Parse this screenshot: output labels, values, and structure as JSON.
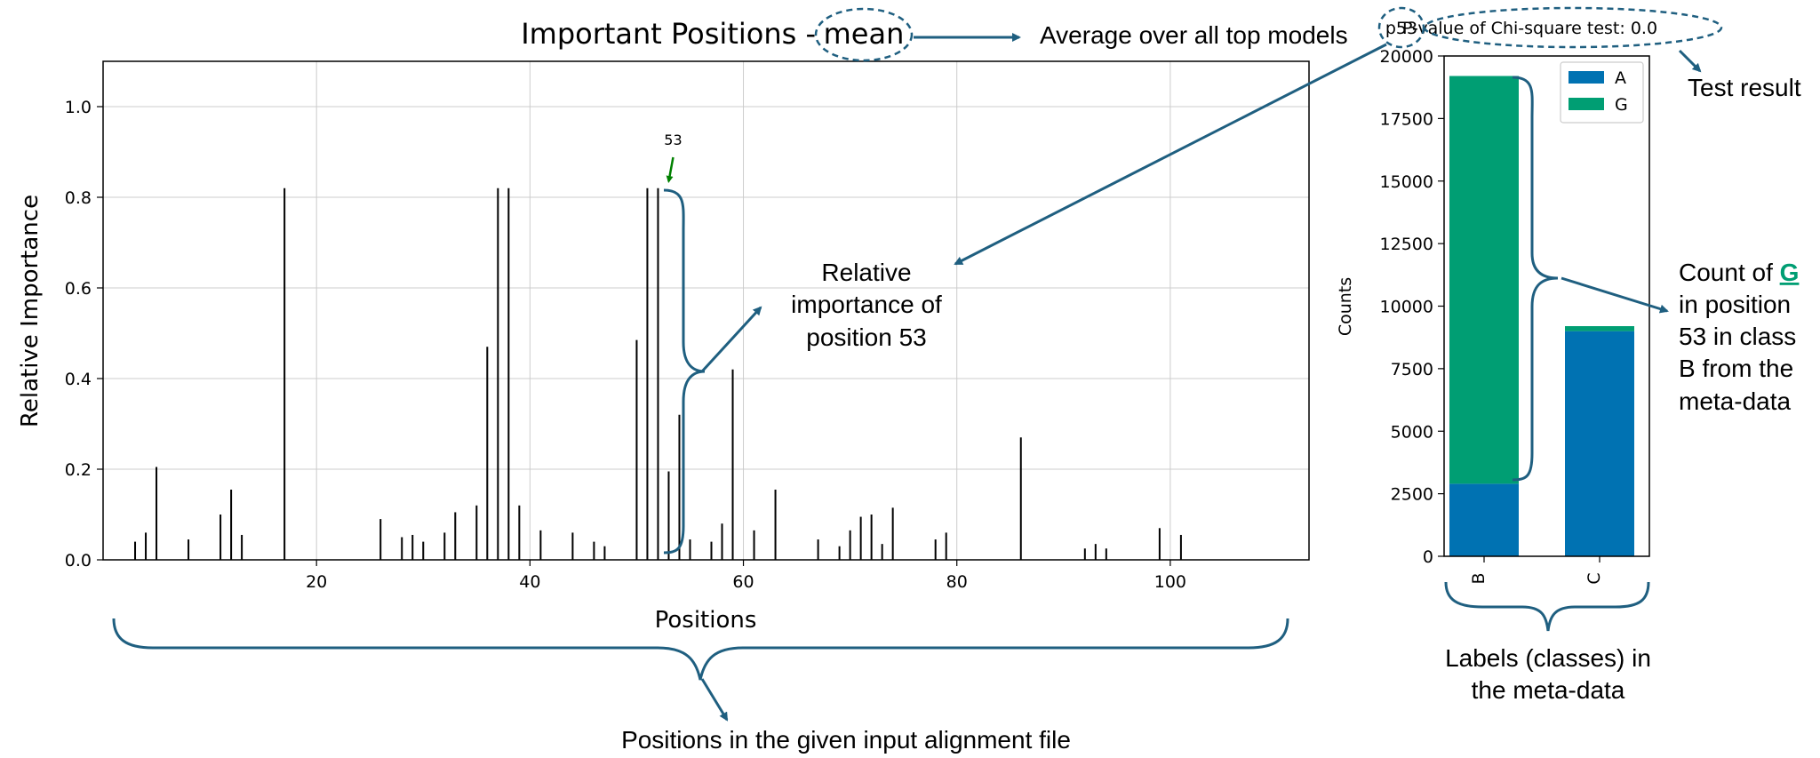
{
  "chart_data": [
    {
      "type": "bar",
      "title_prefix": "Important Positions - ",
      "title_emph": "mean",
      "xlabel": "Positions",
      "ylabel": "Relative Importance",
      "xlim": [
        0,
        113
      ],
      "ylim": [
        0,
        1.1
      ],
      "xticks": [
        20,
        40,
        60,
        80,
        100
      ],
      "yticks": [
        "0.0",
        "0.2",
        "0.4",
        "0.6",
        "0.8",
        "1.0"
      ],
      "grid": true,
      "highlight": {
        "position": 53,
        "label": "53",
        "color": "#008000"
      },
      "x": [
        3,
        4,
        5,
        8,
        11,
        12,
        13,
        17,
        26,
        28,
        29,
        30,
        32,
        33,
        35,
        36,
        37,
        38,
        39,
        41,
        44,
        46,
        47,
        50,
        51,
        52,
        53,
        54,
        55,
        57,
        58,
        59,
        61,
        63,
        67,
        69,
        70,
        71,
        72,
        73,
        74,
        78,
        79,
        86,
        92,
        93,
        94,
        99,
        101
      ],
      "values": [
        0.04,
        0.06,
        0.205,
        0.045,
        0.1,
        0.155,
        0.055,
        0.82,
        0.09,
        0.05,
        0.055,
        0.04,
        0.06,
        0.105,
        0.12,
        0.47,
        0.82,
        0.82,
        0.12,
        0.065,
        0.06,
        0.04,
        0.03,
        0.485,
        0.82,
        0.82,
        0.195,
        0.32,
        0.045,
        0.04,
        0.08,
        0.42,
        0.065,
        0.155,
        0.045,
        0.03,
        0.065,
        0.095,
        0.1,
        0.035,
        0.115,
        0.045,
        0.06,
        0.27,
        0.025,
        0.035,
        0.025,
        0.07,
        0.055
      ],
      "bar_color": "#000000"
    },
    {
      "type": "bar",
      "stacked": true,
      "title": "P-value of Chi-square test: 0.0",
      "title_tag": "p53",
      "ylabel": "Counts",
      "categories": [
        "B",
        "C"
      ],
      "ylim": [
        0,
        20000
      ],
      "yticks": [
        "0",
        "2500",
        "5000",
        "7500",
        "10000",
        "12500",
        "15000",
        "17500",
        "20000"
      ],
      "legend_position": "top-right",
      "series": [
        {
          "name": "A",
          "values": [
            2900,
            9000
          ],
          "color": "#0072b2"
        },
        {
          "name": "G",
          "values": [
            16300,
            200
          ],
          "color": "#009e73"
        }
      ]
    }
  ],
  "annotations": {
    "title_note": "Average over all top models",
    "test_result": "Test result",
    "relative_importance": [
      "Relative",
      "importance of",
      "position 53"
    ],
    "count_note": {
      "prefix": "Count of ",
      "letter": "G",
      "lines": [
        "in position",
        "53 in class",
        "B from the",
        "meta-data"
      ]
    },
    "labels_note": [
      "Labels (classes) in",
      "the meta-data"
    ],
    "positions_note": "Positions in the given input alignment file"
  },
  "colors": {
    "annotation": "#1f5f80",
    "highlight_letter": "#009e73",
    "grid": "#cccccc"
  }
}
